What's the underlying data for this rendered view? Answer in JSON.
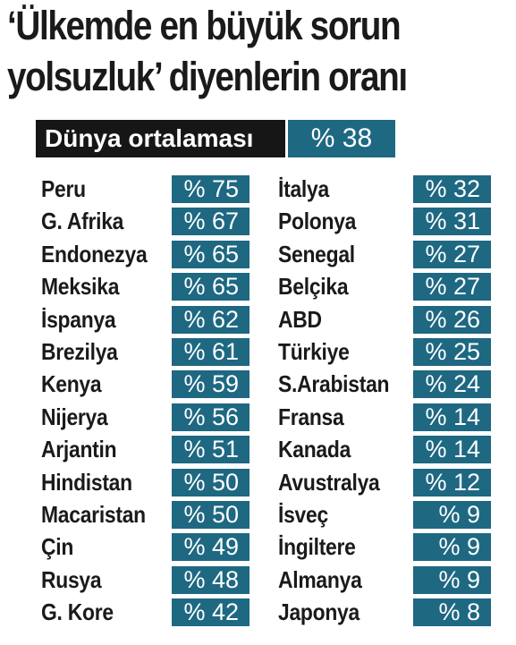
{
  "title": {
    "line1": "‘Ülkemde en büyük sorun",
    "line2": "yolsuzluk’ diyenlerin oranı"
  },
  "average": {
    "label": "Dünya ortalaması",
    "value": "% 38"
  },
  "colors": {
    "value_box": "#1e6882",
    "label_box": "#161616",
    "text": "#1a1a1a"
  },
  "chart_data": {
    "type": "table",
    "title": "‘Ülkemde en büyük sorun yolsuzluk’ diyenlerin oranı",
    "average": {
      "label": "Dünya ortalaması",
      "value": 38
    },
    "columns": [
      {
        "rows": [
          {
            "country": "Peru",
            "value": 75,
            "label": "% 75"
          },
          {
            "country": "G. Afrika",
            "value": 67,
            "label": "% 67"
          },
          {
            "country": "Endonezya",
            "value": 65,
            "label": "% 65"
          },
          {
            "country": "Meksika",
            "value": 65,
            "label": "% 65"
          },
          {
            "country": "İspanya",
            "value": 62,
            "label": "% 62"
          },
          {
            "country": "Brezilya",
            "value": 61,
            "label": "% 61"
          },
          {
            "country": "Kenya",
            "value": 59,
            "label": "% 59"
          },
          {
            "country": "Nijerya",
            "value": 56,
            "label": "% 56"
          },
          {
            "country": "Arjantin",
            "value": 51,
            "label": "% 51"
          },
          {
            "country": "Hindistan",
            "value": 50,
            "label": "% 50"
          },
          {
            "country": "Macaristan",
            "value": 50,
            "label": "% 50"
          },
          {
            "country": "Çin",
            "value": 49,
            "label": "% 49"
          },
          {
            "country": "Rusya",
            "value": 48,
            "label": "% 48"
          },
          {
            "country": "G. Kore",
            "value": 42,
            "label": "% 42"
          }
        ]
      },
      {
        "rows": [
          {
            "country": "İtalya",
            "value": 32,
            "label": "% 32"
          },
          {
            "country": "Polonya",
            "value": 31,
            "label": "% 31"
          },
          {
            "country": "Senegal",
            "value": 27,
            "label": "% 27"
          },
          {
            "country": "Belçika",
            "value": 27,
            "label": "% 27"
          },
          {
            "country": "ABD",
            "value": 26,
            "label": "% 26"
          },
          {
            "country": "Türkiye",
            "value": 25,
            "label": "% 25"
          },
          {
            "country": "S.Arabistan",
            "value": 24,
            "label": "% 24"
          },
          {
            "country": "Fransa",
            "value": 14,
            "label": "% 14"
          },
          {
            "country": "Kanada",
            "value": 14,
            "label": "% 14"
          },
          {
            "country": "Avustralya",
            "value": 12,
            "label": "% 12"
          },
          {
            "country": "İsveç",
            "value": 9,
            "label": "% 9"
          },
          {
            "country": "İngiltere",
            "value": 9,
            "label": "% 9"
          },
          {
            "country": "Almanya",
            "value": 9,
            "label": "% 9"
          },
          {
            "country": "Japonya",
            "value": 8,
            "label": "% 8"
          }
        ]
      }
    ]
  }
}
